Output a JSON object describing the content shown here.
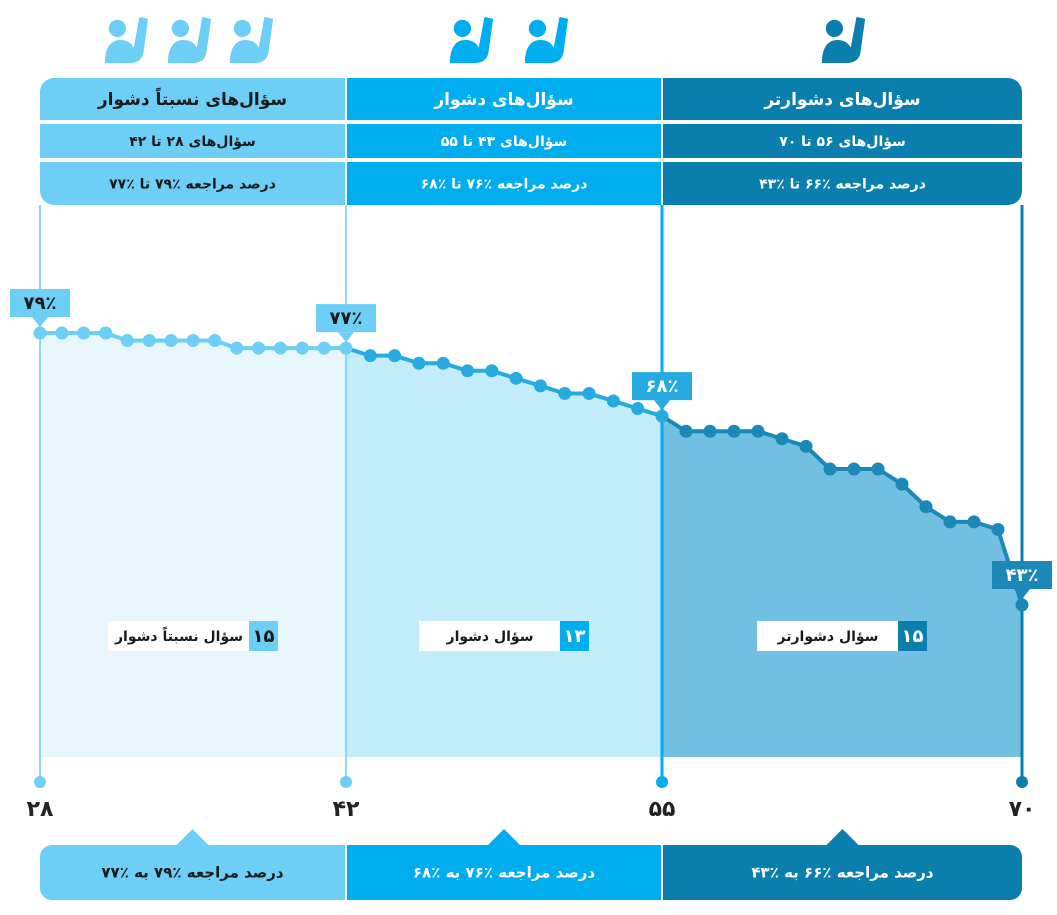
{
  "chart_data": {
    "type": "line",
    "x": [
      28,
      29,
      30,
      31,
      32,
      33,
      34,
      35,
      36,
      37,
      38,
      39,
      40,
      41,
      42,
      43,
      44,
      45,
      46,
      47,
      48,
      49,
      50,
      51,
      52,
      53,
      54,
      55,
      56,
      57,
      58,
      59,
      60,
      61,
      62,
      63,
      64,
      65,
      66,
      67,
      68,
      69,
      70
    ],
    "values": [
      79,
      79,
      79,
      79,
      78,
      78,
      78,
      78,
      78,
      77,
      77,
      77,
      77,
      77,
      77,
      76,
      76,
      75,
      75,
      74,
      74,
      73,
      72,
      71,
      71,
      70,
      69,
      68,
      66,
      66,
      66,
      66,
      65,
      64,
      61,
      61,
      61,
      59,
      56,
      54,
      54,
      53,
      43
    ],
    "value_labels": [
      "۷۹٪",
      null,
      null,
      null,
      null,
      null,
      null,
      null,
      null,
      null,
      null,
      null,
      null,
      null,
      "۷۷٪",
      null,
      null,
      null,
      null,
      null,
      null,
      null,
      null,
      null,
      null,
      null,
      null,
      "۶۸٪",
      null,
      null,
      null,
      null,
      null,
      null,
      null,
      null,
      null,
      null,
      null,
      null,
      null,
      null,
      "۴۳٪"
    ],
    "xticks": [
      {
        "value": 28,
        "label": "۲۸"
      },
      {
        "value": 42,
        "label": "۴۲"
      },
      {
        "value": 55,
        "label": "۵۵"
      },
      {
        "value": 70,
        "label": "۷۰"
      }
    ],
    "groups": [
      {
        "title": "سؤال‌های نسبتاً دشوار",
        "range": "سؤال‌های ۲۸ تا ۴۲",
        "rate": "درصد مراجعه ٪۷۹ تا ٪۷۷",
        "count": "۱۵",
        "count_text": "سؤال نسبتاً دشوار",
        "summary": "درصد مراجعه ٪۷۹ به ٪۷۷",
        "color": "#6dcff6",
        "line_color": "#6dcff6",
        "area_color": "#e8f7fd",
        "text_color": "#1a1a1a"
      },
      {
        "title": "سؤال‌های دشوار",
        "range": "سؤال‌های ۴۳ تا ۵۵",
        "rate": "درصد مراجعه ٪۷۶ تا ٪۶۸",
        "count": "۱۳",
        "count_text": "سؤال دشوار",
        "summary": "درصد مراجعه ٪۷۶ به ٪۶۸",
        "color": "#00aeef",
        "line_color": "#27aae1",
        "area_color": "#c4edfb",
        "text_color": "#ffffff"
      },
      {
        "title": "سؤال‌های دشوارتر",
        "range": "سؤال‌های ۵۶ تا ۷۰",
        "rate": "درصد مراجعه ٪۶۶ تا ٪۴۳",
        "count": "۱۵",
        "count_text": "سؤال دشوارتر",
        "summary": "درصد مراجعه ٪۶۶ به ٪۴۳",
        "color": "#0a7fad",
        "line_color": "#1b88b8",
        "area_color": "#72c0e1",
        "text_color": "#ffffff"
      }
    ]
  }
}
